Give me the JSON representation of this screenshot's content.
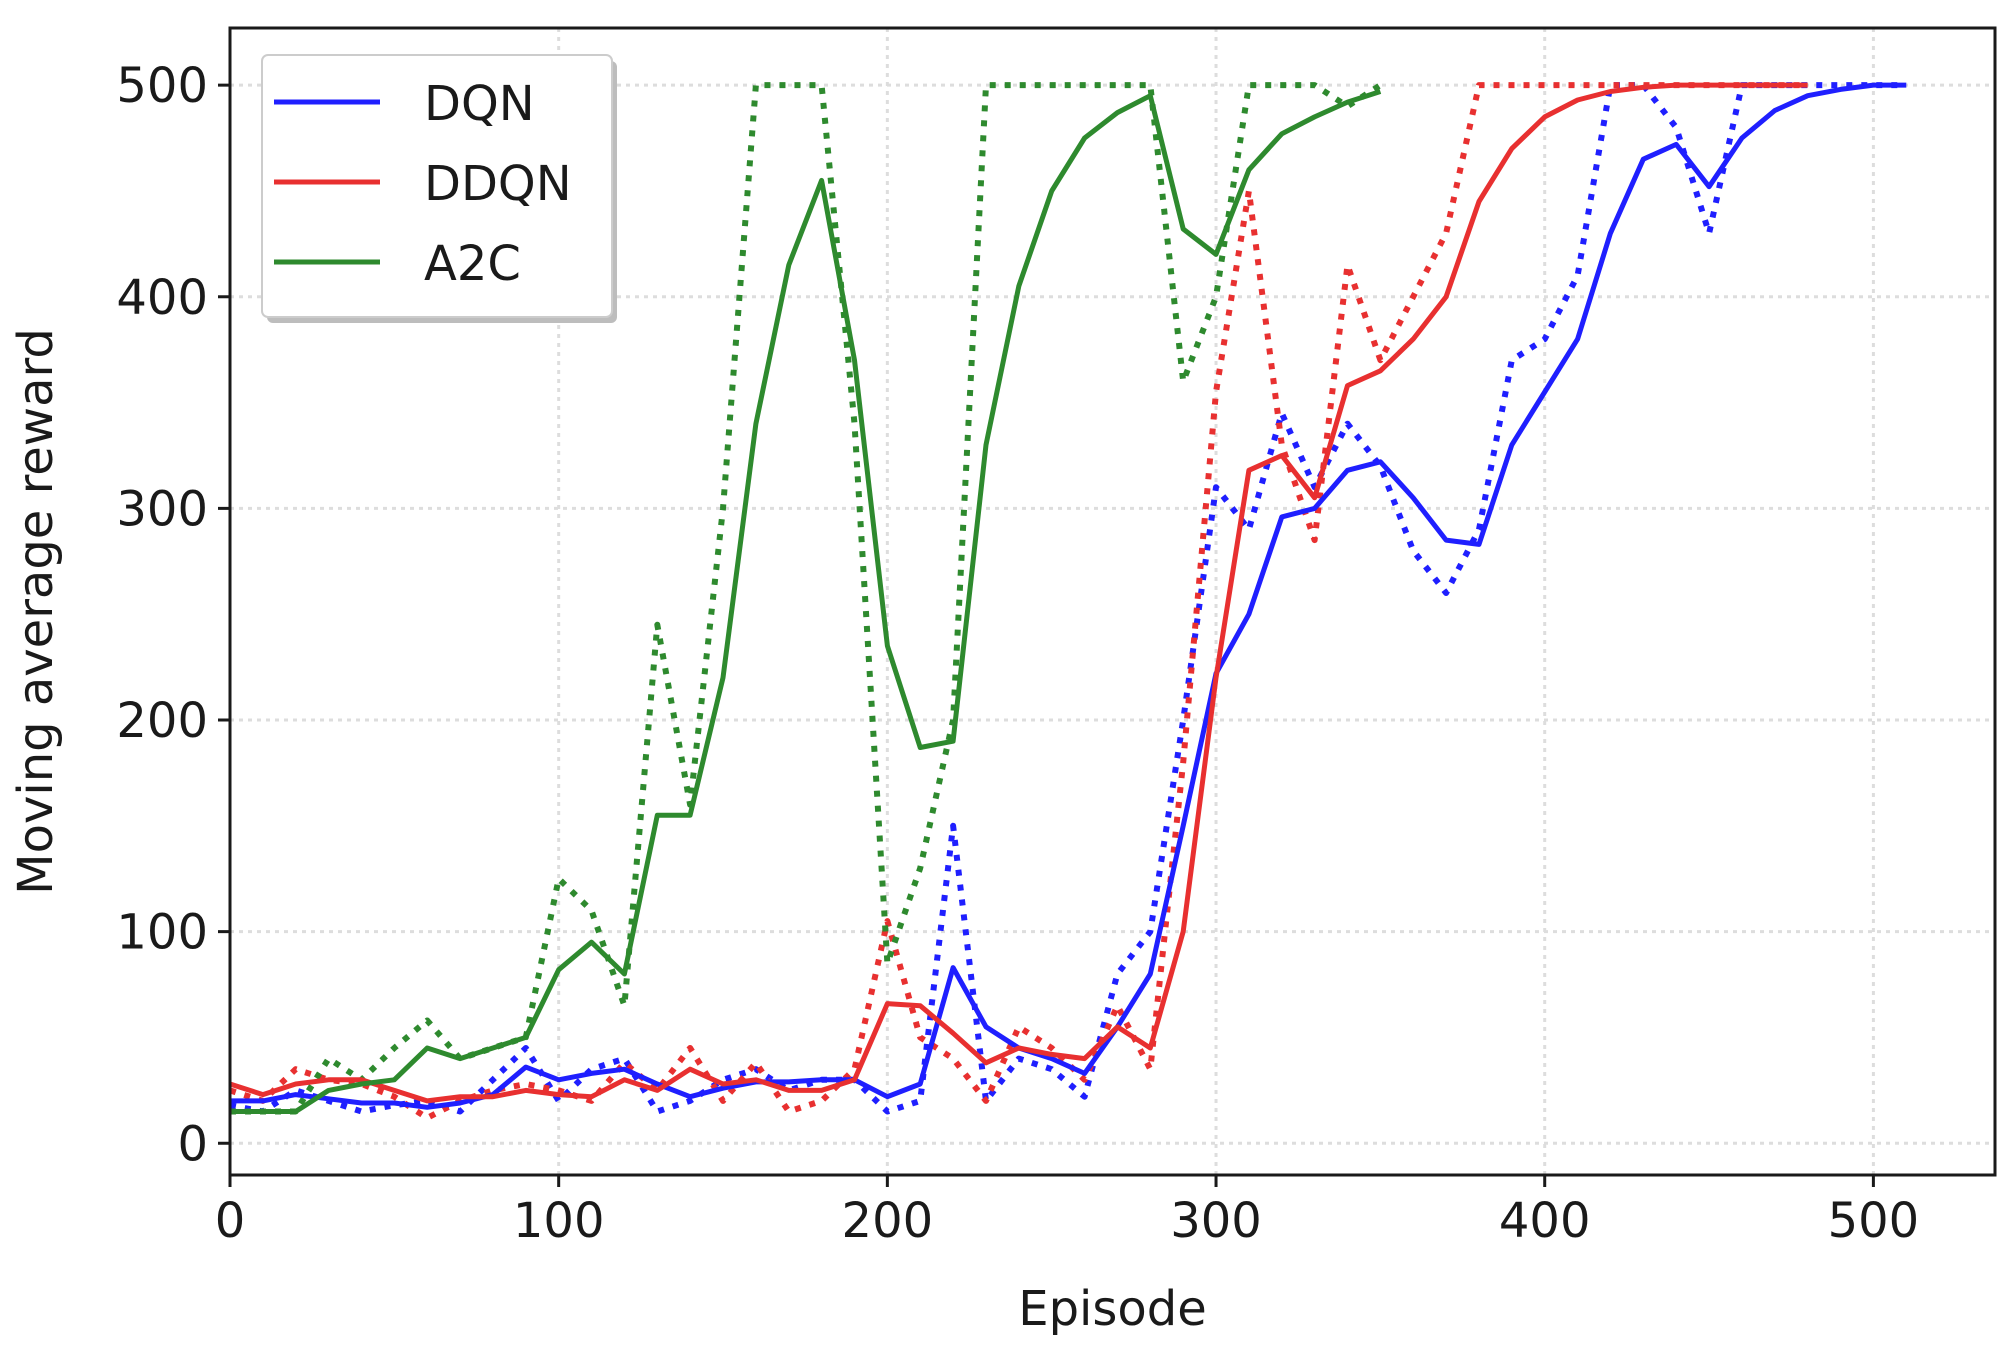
{
  "chart_data": {
    "type": "line",
    "xlabel": "Episode",
    "ylabel": "Moving average reward",
    "xlim": [
      0,
      537
    ],
    "ylim": [
      -15,
      527
    ],
    "xticks": [
      0,
      100,
      200,
      300,
      400,
      500
    ],
    "yticks": [
      0,
      100,
      200,
      300,
      400,
      500
    ],
    "xtick_labels": [
      "0",
      "100",
      "200",
      "300",
      "400",
      "500"
    ],
    "ytick_labels": [
      "0",
      "100",
      "200",
      "300",
      "400",
      "500"
    ],
    "grid": true,
    "legend_position": "top-left",
    "legend": [
      "DQN",
      "DDQN",
      "A2C"
    ],
    "series": [
      {
        "name": "DQN",
        "color": "#1f1fff",
        "style": "solid",
        "x": [
          0,
          10,
          20,
          30,
          40,
          50,
          60,
          70,
          80,
          90,
          100,
          110,
          120,
          130,
          140,
          150,
          160,
          170,
          180,
          190,
          200,
          210,
          220,
          230,
          240,
          250,
          260,
          270,
          280,
          290,
          300,
          310,
          320,
          330,
          340,
          350,
          360,
          370,
          380,
          390,
          400,
          410,
          420,
          430,
          440,
          450,
          460,
          470,
          480,
          490,
          500,
          510
        ],
        "y": [
          20,
          20,
          23,
          21,
          19,
          19,
          17,
          19,
          23,
          36,
          30,
          33,
          35,
          28,
          22,
          26,
          29,
          29,
          30,
          30,
          22,
          28,
          83,
          55,
          45,
          40,
          33,
          55,
          80,
          150,
          222,
          250,
          296,
          300,
          318,
          322,
          305,
          285,
          283,
          330,
          355,
          380,
          430,
          465,
          472,
          452,
          475,
          488,
          495,
          498,
          500,
          500
        ]
      },
      {
        "name": "DQN",
        "color": "#1f1fff",
        "style": "dotted",
        "x": [
          0,
          10,
          20,
          30,
          40,
          50,
          60,
          70,
          80,
          90,
          100,
          110,
          120,
          130,
          140,
          150,
          160,
          170,
          180,
          190,
          200,
          210,
          220,
          230,
          240,
          250,
          260,
          270,
          280,
          290,
          300,
          310,
          320,
          330,
          340,
          350,
          360,
          370,
          380,
          390,
          400,
          410,
          420,
          430,
          440,
          450,
          460,
          470,
          480,
          490,
          500,
          510
        ],
        "y": [
          18,
          15,
          25,
          20,
          15,
          18,
          20,
          15,
          30,
          45,
          20,
          35,
          40,
          15,
          20,
          30,
          35,
          25,
          30,
          30,
          15,
          20,
          150,
          20,
          40,
          35,
          22,
          80,
          100,
          200,
          310,
          290,
          345,
          310,
          340,
          320,
          280,
          260,
          290,
          370,
          380,
          410,
          500,
          500,
          480,
          430,
          500,
          500,
          500,
          500,
          500,
          500
        ]
      },
      {
        "name": "DDQN",
        "color": "#e83030",
        "style": "solid",
        "x": [
          0,
          10,
          20,
          30,
          40,
          50,
          60,
          70,
          80,
          90,
          100,
          110,
          120,
          130,
          140,
          150,
          160,
          170,
          180,
          190,
          200,
          210,
          220,
          230,
          240,
          250,
          260,
          270,
          280,
          290,
          300,
          310,
          320,
          330,
          340,
          350,
          360,
          370,
          380,
          390,
          400,
          410,
          420,
          430,
          440,
          450,
          460,
          470,
          480
        ],
        "y": [
          28,
          23,
          28,
          30,
          30,
          25,
          20,
          22,
          22,
          25,
          23,
          22,
          30,
          25,
          35,
          28,
          30,
          25,
          25,
          30,
          66,
          65,
          52,
          38,
          45,
          42,
          40,
          55,
          45,
          100,
          220,
          318,
          325,
          305,
          358,
          365,
          380,
          400,
          445,
          470,
          485,
          493,
          497,
          499,
          500,
          500,
          500,
          500,
          500
        ]
      },
      {
        "name": "DDQN",
        "color": "#e83030",
        "style": "dotted",
        "x": [
          0,
          10,
          20,
          30,
          40,
          50,
          60,
          70,
          80,
          90,
          100,
          110,
          120,
          130,
          140,
          150,
          160,
          170,
          180,
          190,
          200,
          210,
          220,
          230,
          240,
          250,
          260,
          270,
          280,
          290,
          300,
          310,
          320,
          330,
          340,
          350,
          360,
          370,
          380,
          390,
          400,
          410,
          420,
          430,
          440,
          450,
          460,
          470,
          480
        ],
        "y": [
          25,
          20,
          35,
          30,
          28,
          22,
          12,
          20,
          25,
          28,
          25,
          20,
          38,
          25,
          45,
          20,
          38,
          15,
          20,
          35,
          105,
          50,
          40,
          20,
          55,
          45,
          30,
          65,
          35,
          180,
          355,
          450,
          330,
          285,
          415,
          370,
          400,
          430,
          500,
          500,
          500,
          500,
          500,
          500,
          500,
          500,
          500,
          500,
          500
        ]
      },
      {
        "name": "A2C",
        "color": "#2e8a2e",
        "style": "solid",
        "x": [
          0,
          10,
          20,
          30,
          40,
          50,
          60,
          70,
          80,
          90,
          100,
          110,
          120,
          130,
          140,
          150,
          160,
          170,
          180,
          190,
          200,
          210,
          220,
          230,
          240,
          250,
          260,
          270,
          280,
          290,
          300,
          310,
          320,
          330,
          340,
          350
        ],
        "y": [
          15,
          15,
          15,
          25,
          28,
          30,
          45,
          40,
          45,
          50,
          82,
          95,
          80,
          155,
          155,
          220,
          340,
          415,
          455,
          370,
          235,
          187,
          190,
          330,
          405,
          450,
          475,
          487,
          495,
          432,
          420,
          460,
          477,
          485,
          492,
          497
        ]
      },
      {
        "name": "A2C",
        "color": "#2e8a2e",
        "style": "dotted",
        "x": [
          0,
          10,
          20,
          30,
          40,
          50,
          60,
          70,
          80,
          90,
          100,
          110,
          120,
          130,
          140,
          150,
          160,
          170,
          180,
          190,
          200,
          210,
          220,
          230,
          240,
          250,
          260,
          270,
          280,
          290,
          300,
          310,
          320,
          330,
          340,
          350
        ],
        "y": [
          15,
          15,
          15,
          40,
          30,
          45,
          58,
          40,
          45,
          50,
          125,
          110,
          65,
          245,
          160,
          300,
          500,
          500,
          500,
          340,
          85,
          130,
          200,
          500,
          500,
          500,
          500,
          500,
          500,
          360,
          400,
          500,
          500,
          500,
          490,
          500
        ]
      }
    ]
  }
}
